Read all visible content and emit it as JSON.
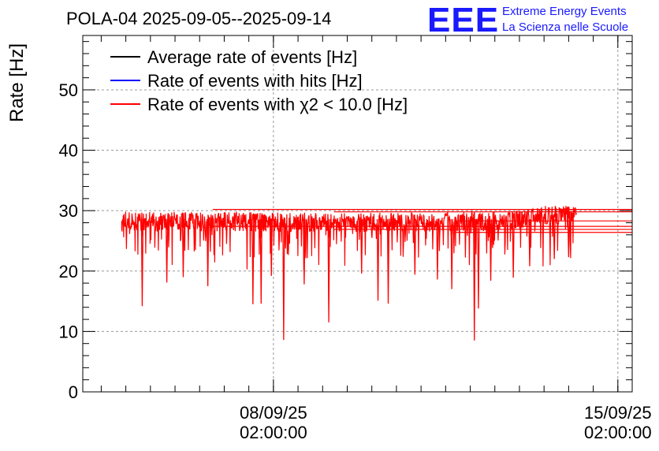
{
  "chart_data": {
    "type": "line",
    "title": "POLA-04 2025-09-05--2025-09-14",
    "ylabel": "Rate [Hz]",
    "xlabel": "",
    "ylim": [
      0,
      59
    ],
    "yticks": [
      0,
      10,
      20,
      30,
      40,
      50
    ],
    "xticks": [
      {
        "date": "08/09/25",
        "time": "02:00:00",
        "x": "2025-09-08T02:00:00"
      },
      {
        "date": "15/09/25",
        "time": "02:00:00",
        "x": "2025-09-15T02:00:00"
      }
    ],
    "xlim": [
      "2025-09-04T05:00:00",
      "2025-09-15T09:00:00"
    ],
    "grid": true,
    "legend_position": "top-left",
    "series": [
      {
        "name": "Average rate of events [Hz]",
        "color": "#000000"
      },
      {
        "name": "Rate of events with hits [Hz]",
        "color": "#0000ff"
      },
      {
        "name": "Rate of events with χ2 < 10.0 [Hz]",
        "color": "#ff0000",
        "x_start": "2025-09-05T00:00:00",
        "x_end": "2025-09-14T06:00:00",
        "typical_y": 28.3,
        "trend": [
          [
            0,
            28.3
          ],
          [
            0.5,
            28.0
          ],
          [
            0.85,
            28.3
          ],
          [
            0.92,
            29.2
          ],
          [
            1.0,
            29.3
          ]
        ],
        "dips": [
          {
            "x": "2025-09-05T10:00:00",
            "y": 14.2
          },
          {
            "x": "2025-09-05T22:00:00",
            "y": 18.1
          },
          {
            "x": "2025-09-06T06:00:00",
            "y": 19.0
          },
          {
            "x": "2025-09-06T18:00:00",
            "y": 17.5
          },
          {
            "x": "2025-09-07T16:00:00",
            "y": 14.5
          },
          {
            "x": "2025-09-07T20:00:00",
            "y": 14.6
          },
          {
            "x": "2025-09-08T01:00:00",
            "y": 19.2
          },
          {
            "x": "2025-09-08T07:00:00",
            "y": 8.6
          },
          {
            "x": "2025-09-08T17:00:00",
            "y": 17.8
          },
          {
            "x": "2025-09-09T05:00:00",
            "y": 11.5
          },
          {
            "x": "2025-09-09T21:00:00",
            "y": 19.6
          },
          {
            "x": "2025-09-10T05:00:00",
            "y": 15.1
          },
          {
            "x": "2025-09-10T10:00:00",
            "y": 14.6
          },
          {
            "x": "2025-09-10T23:00:00",
            "y": 19.4
          },
          {
            "x": "2025-09-11T10:00:00",
            "y": 18.6
          },
          {
            "x": "2025-09-11T17:00:00",
            "y": 17.0
          },
          {
            "x": "2025-09-12T04:00:00",
            "y": 8.5
          },
          {
            "x": "2025-09-12T06:00:00",
            "y": 13.8
          },
          {
            "x": "2025-09-12T12:00:00",
            "y": 18.4
          },
          {
            "x": "2025-09-12T23:00:00",
            "y": 18.9
          },
          {
            "x": "2025-09-13T07:00:00",
            "y": 20.8
          },
          {
            "x": "2025-09-13T19:00:00",
            "y": 22.0
          },
          {
            "x": "2025-09-14T02:00:00",
            "y": 22.3
          }
        ],
        "tail_levels": [
          30.2,
          29.8,
          28.3,
          27.4,
          26.9,
          26.4
        ]
      }
    ]
  },
  "logo": {
    "mark": "EEE",
    "line1": "Extreme Energy Events",
    "line2": "La Scienza nelle Scuole",
    "color": "#1a1aff"
  }
}
